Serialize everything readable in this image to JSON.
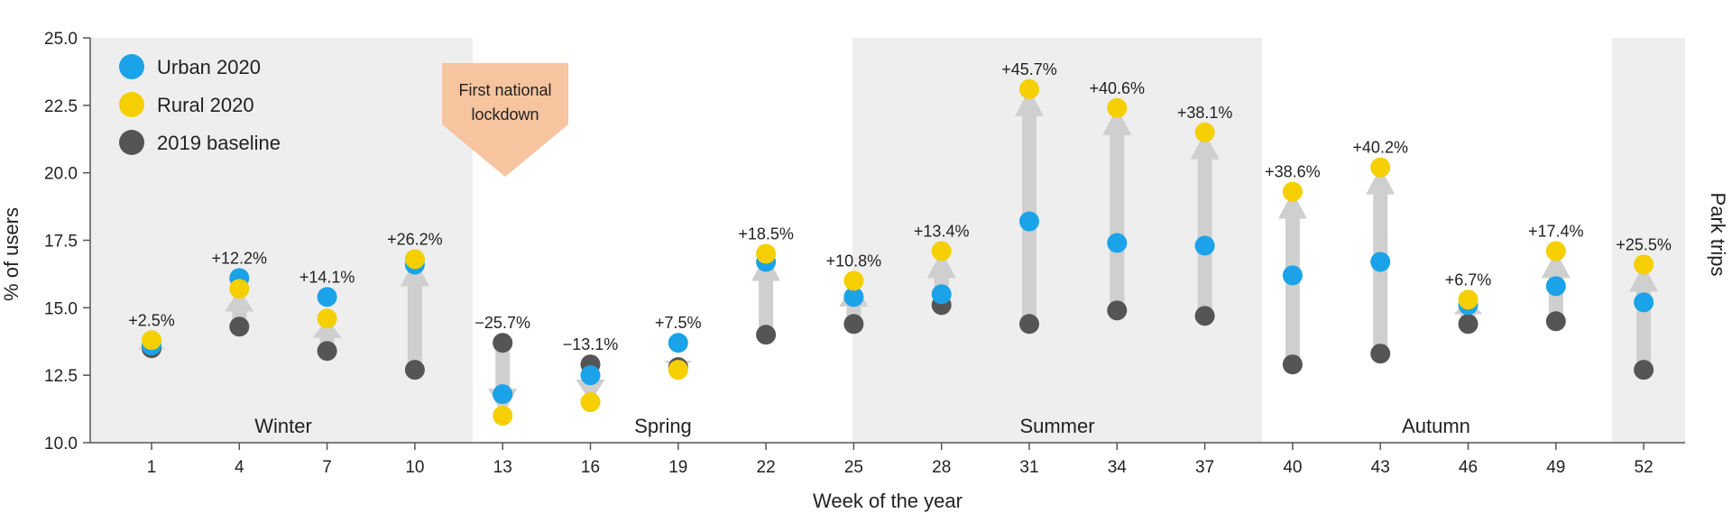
{
  "chart_data": {
    "type": "scatter",
    "title": "",
    "xlabel": "Week of the year",
    "ylabel": "% of users",
    "right_label": "Park trips",
    "ylim": [
      10.0,
      25.0
    ],
    "yticks": [
      "10.0",
      "12.5",
      "15.0",
      "17.5",
      "20.0",
      "22.5",
      "25.0"
    ],
    "categories": [
      "1",
      "4",
      "7",
      "10",
      "13",
      "16",
      "19",
      "22",
      "25",
      "28",
      "31",
      "34",
      "37",
      "40",
      "43",
      "46",
      "49",
      "52"
    ],
    "series": [
      {
        "name": "Urban 2020",
        "color": "#1aa3e8",
        "values": [
          13.6,
          16.1,
          15.4,
          16.6,
          11.8,
          12.5,
          13.7,
          16.7,
          15.4,
          15.5,
          18.2,
          17.4,
          17.3,
          16.2,
          16.7,
          15.1,
          15.8,
          15.2
        ]
      },
      {
        "name": "Rural 2020",
        "color": "#f5cf00",
        "values": [
          13.8,
          15.7,
          14.6,
          16.8,
          11.0,
          11.5,
          12.7,
          17.0,
          16.0,
          17.1,
          23.1,
          22.4,
          21.5,
          19.3,
          20.2,
          15.3,
          17.1,
          16.6
        ]
      },
      {
        "name": "2019 baseline",
        "color": "#555555",
        "values": [
          13.5,
          14.3,
          13.4,
          12.7,
          13.7,
          12.9,
          12.8,
          14.0,
          14.4,
          15.1,
          14.4,
          14.9,
          14.7,
          12.9,
          13.3,
          14.4,
          14.5,
          12.7
        ]
      }
    ],
    "change_labels": [
      "+2.5%",
      "+12.2%",
      "+14.1%",
      "+26.2%",
      "−25.7%",
      "−13.1%",
      "+7.5%",
      "+18.5%",
      "+10.8%",
      "+13.4%",
      "+45.7%",
      "+40.6%",
      "+38.1%",
      "+38.6%",
      "+40.2%",
      "+6.7%",
      "+17.4%",
      "+25.5%"
    ],
    "seasons": [
      {
        "label": "Winter",
        "shaded": true
      },
      {
        "label": "Spring",
        "shaded": false
      },
      {
        "label": "Summer",
        "shaded": true
      },
      {
        "label": "Autumn",
        "shaded": false
      }
    ],
    "annotation": {
      "lines": [
        "First national",
        "lockdown"
      ],
      "color": "#f7c4a0"
    },
    "legend_position": "top-left",
    "grid": false,
    "colors": {
      "shade": "#eeeeee",
      "arrow": "#cfcfcf",
      "axis": "#555555"
    }
  }
}
